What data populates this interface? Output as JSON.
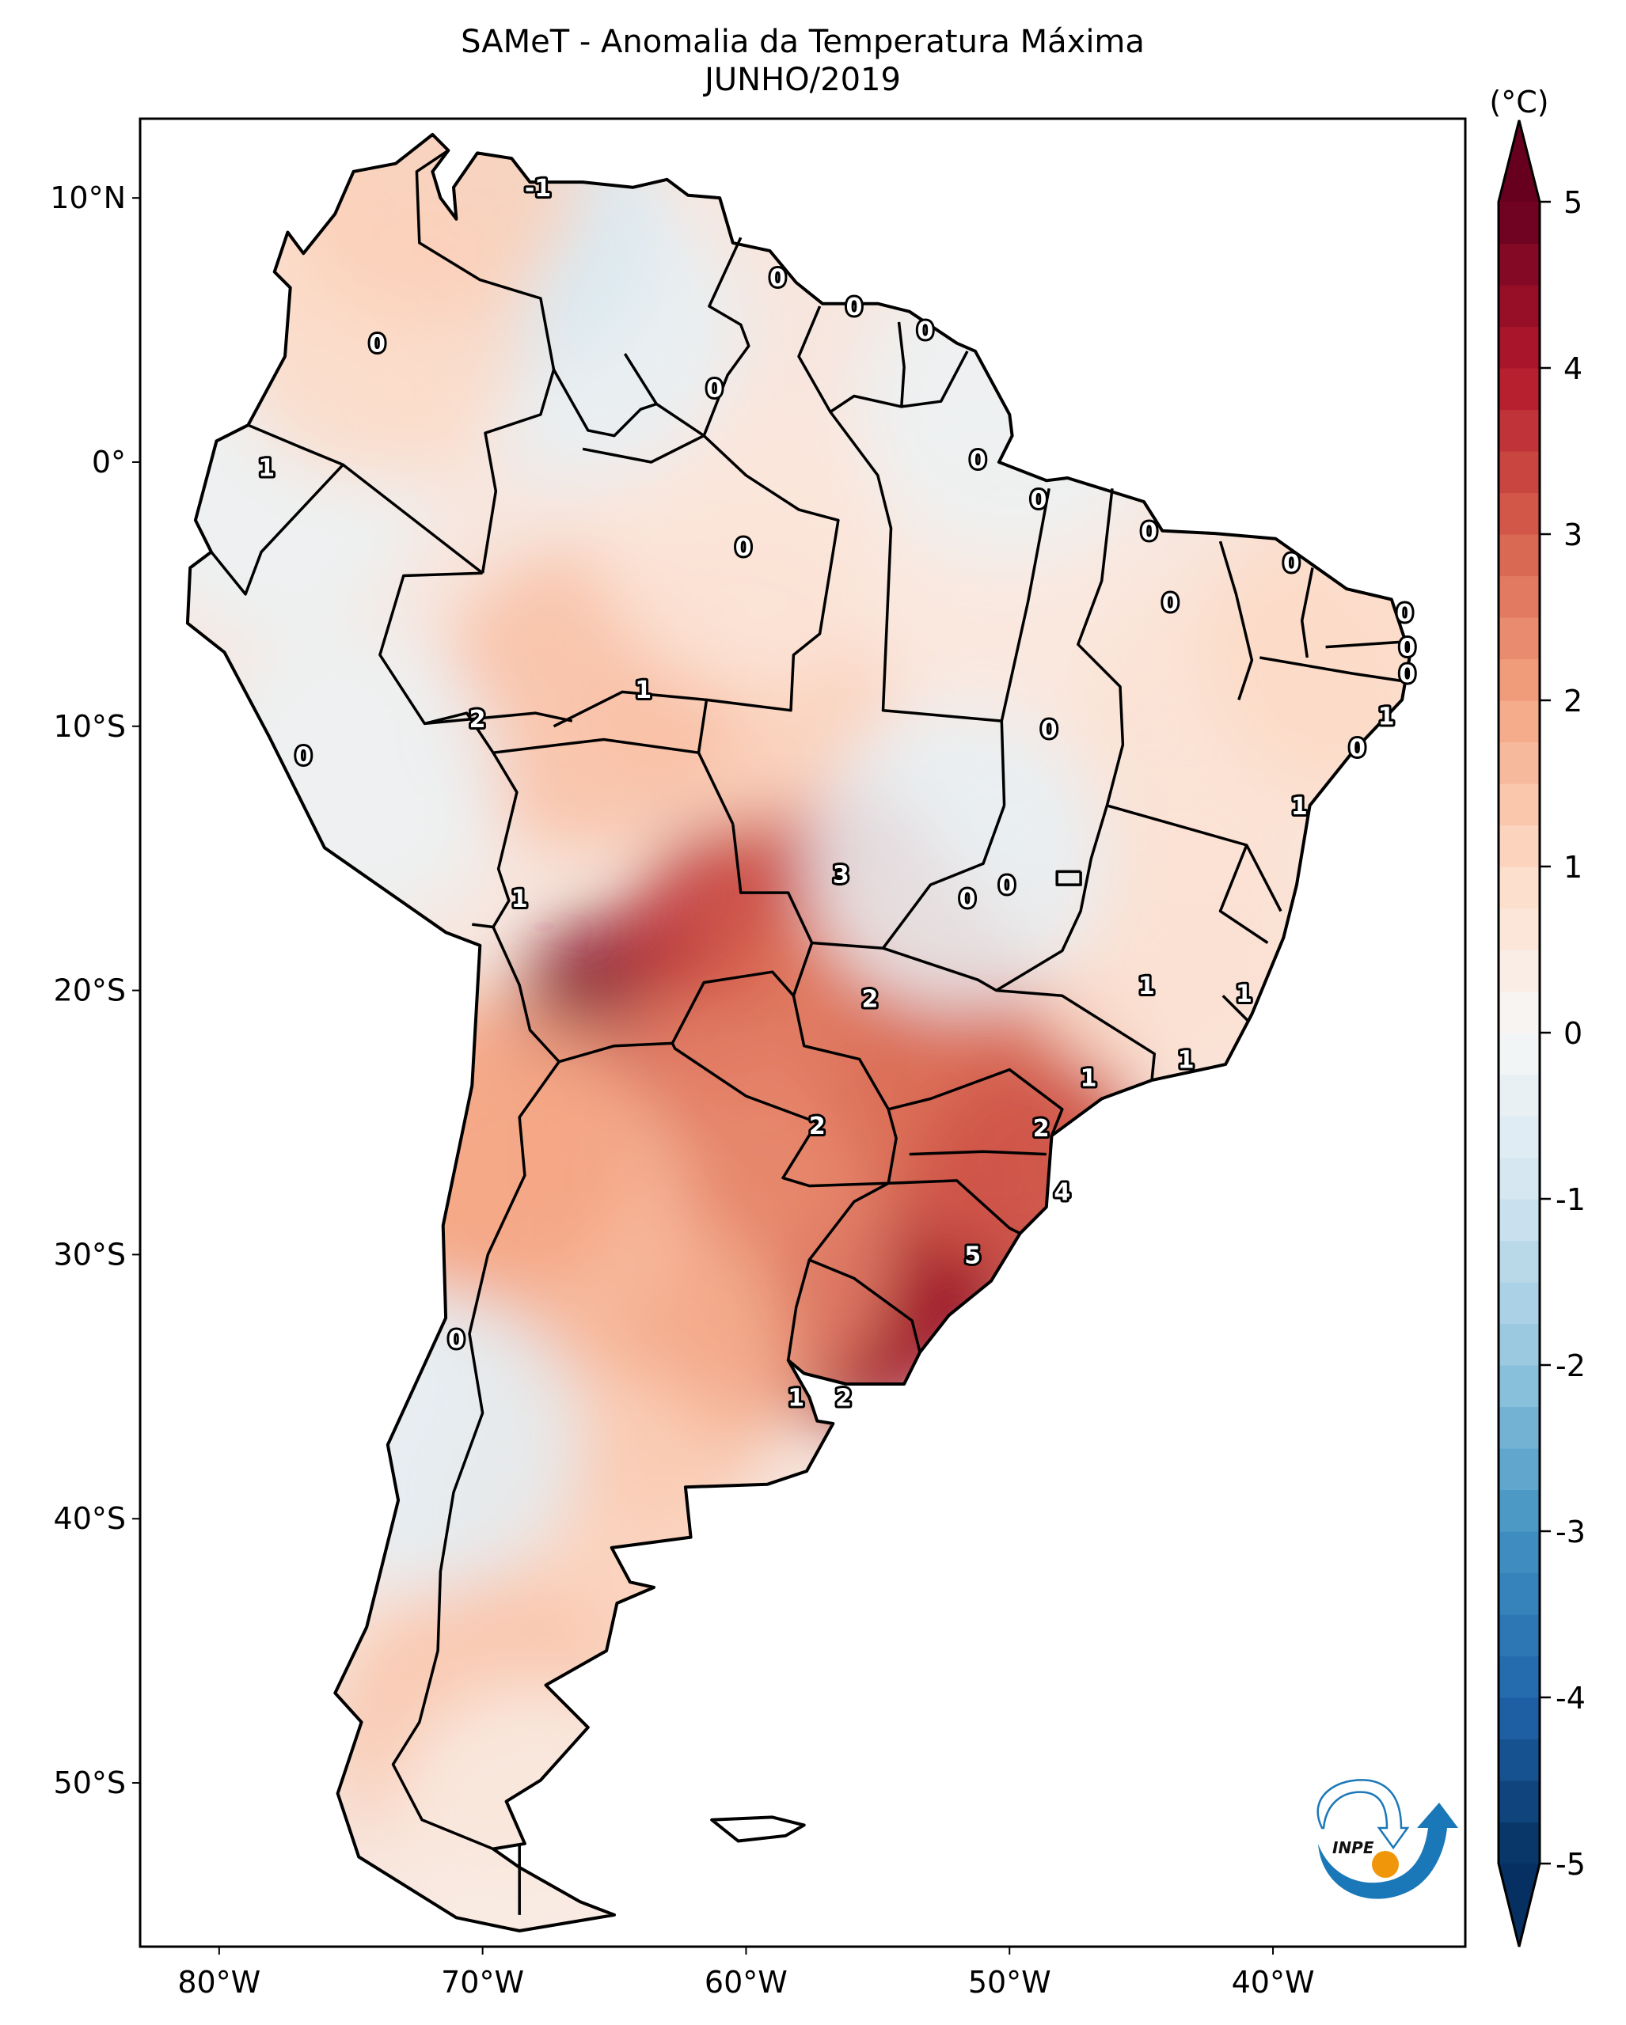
{
  "figure": {
    "title_line1": "SAMeT - Anomalia da Temperatura Máxima",
    "title_line2": "JUNHO/2019",
    "colorbar_unit": "(°C)",
    "logo_text": "INPE"
  },
  "colors": {
    "logo_blue": "#1a78b8",
    "logo_orange": "#f0960a",
    "border": "#000000"
  },
  "chart_data": {
    "type": "heatmap",
    "title": "SAMeT - Anomalia da Temperatura Máxima — JUNHO/2019",
    "xlabel": "",
    "ylabel": "",
    "colorbar_label": "(°C)",
    "colormap": "RdBu_r",
    "clim": [
      -5,
      5
    ],
    "extend": "both",
    "colorbar_ticks": [
      5,
      4,
      3,
      2,
      1,
      0,
      -1,
      -2,
      -3,
      -4,
      -5
    ],
    "colorbar_tick_labels": [
      "5",
      "4",
      "3",
      "2",
      "1",
      "0",
      "-1",
      "-2",
      "-3",
      "-4",
      "-5"
    ],
    "lon_range": [
      -83,
      -32.7
    ],
    "lat_range": [
      -56.2,
      13
    ],
    "x_ticks": [
      -80,
      -70,
      -60,
      -50,
      -40
    ],
    "x_tick_labels": [
      "80°W",
      "70°W",
      "60°W",
      "50°W",
      "40°W"
    ],
    "y_ticks": [
      10,
      0,
      -10,
      -20,
      -30,
      -40,
      -50
    ],
    "y_tick_labels": [
      "10°N",
      "0°",
      "10°S",
      "20°S",
      "30°S",
      "40°S",
      "50°S"
    ],
    "anomaly_field_samples": [
      {
        "lon": -55,
        "lat": -30.5,
        "value": 4.8
      },
      {
        "lon": -53,
        "lat": -29.5,
        "value": 4.5
      },
      {
        "lon": -56,
        "lat": -32,
        "value": 4.2
      },
      {
        "lon": -64.5,
        "lat": -21.5,
        "value": 4.6
      },
      {
        "lon": -60,
        "lat": -18,
        "value": 3.6
      },
      {
        "lon": -57,
        "lat": -16.5,
        "value": 3.2
      },
      {
        "lon": -58,
        "lat": -23,
        "value": 3.0
      },
      {
        "lon": -54,
        "lat": -21,
        "value": 2.6
      },
      {
        "lon": -51,
        "lat": -24,
        "value": 2.8
      },
      {
        "lon": -49,
        "lat": -27,
        "value": 3.2
      },
      {
        "lon": -62,
        "lat": -26,
        "value": 2.5
      },
      {
        "lon": -60,
        "lat": -30,
        "value": 2.4
      },
      {
        "lon": -64,
        "lat": -34,
        "value": 1.8
      },
      {
        "lon": -68,
        "lat": -28,
        "value": 1.6
      },
      {
        "lon": -70,
        "lat": -26,
        "value": 2.0
      },
      {
        "lon": -66,
        "lat": -40,
        "value": 1.2
      },
      {
        "lon": -70,
        "lat": -48,
        "value": 1.4
      },
      {
        "lon": -68,
        "lat": -52,
        "value": 0.4
      },
      {
        "lon": -60,
        "lat": -8,
        "value": 1.2
      },
      {
        "lon": -66,
        "lat": -9,
        "value": 1.5
      },
      {
        "lon": -60,
        "lat": -3,
        "value": 0.6
      },
      {
        "lon": -50,
        "lat": -5,
        "value": 0.5
      },
      {
        "lon": -44,
        "lat": -18,
        "value": 0.8
      },
      {
        "lon": -42,
        "lat": -10,
        "value": 0.7
      },
      {
        "lon": -37,
        "lat": -7,
        "value": 1.0
      },
      {
        "lon": -52,
        "lat": -15,
        "value": -0.4
      },
      {
        "lon": -50,
        "lat": 2,
        "value": -0.3
      },
      {
        "lon": -66,
        "lat": 5,
        "value": -0.4
      },
      {
        "lon": -69,
        "lat": 9,
        "value": -0.8
      },
      {
        "lon": -78,
        "lat": -1,
        "value": -0.3
      },
      {
        "lon": -75,
        "lat": -12,
        "value": -0.3
      },
      {
        "lon": -72,
        "lat": -37,
        "value": -0.5
      },
      {
        "lon": -74,
        "lat": 5,
        "value": 1.0
      },
      {
        "lon": -72,
        "lat": 11,
        "value": 1.2
      }
    ],
    "contour_labels": [
      {
        "lon": -67.9,
        "lat": 10.4,
        "text": "-1"
      },
      {
        "lon": -74.0,
        "lat": 4.5,
        "text": "0"
      },
      {
        "lon": -61.2,
        "lat": 2.8,
        "text": "0"
      },
      {
        "lon": -58.8,
        "lat": 7.0,
        "text": "0"
      },
      {
        "lon": -55.9,
        "lat": 5.9,
        "text": "0"
      },
      {
        "lon": -53.2,
        "lat": 5.0,
        "text": "0"
      },
      {
        "lon": -51.2,
        "lat": 0.1,
        "text": "0"
      },
      {
        "lon": -48.9,
        "lat": -1.4,
        "text": "0"
      },
      {
        "lon": -44.7,
        "lat": -2.6,
        "text": "0"
      },
      {
        "lon": -39.3,
        "lat": -3.8,
        "text": "0"
      },
      {
        "lon": -43.9,
        "lat": -5.3,
        "text": "0"
      },
      {
        "lon": -35.0,
        "lat": -5.7,
        "text": "0"
      },
      {
        "lon": -34.9,
        "lat": -7.0,
        "text": "0"
      },
      {
        "lon": -34.9,
        "lat": -8.0,
        "text": "0"
      },
      {
        "lon": -35.7,
        "lat": -9.6,
        "text": "1"
      },
      {
        "lon": -36.8,
        "lat": -10.8,
        "text": "0"
      },
      {
        "lon": -39.0,
        "lat": -13.0,
        "text": "1"
      },
      {
        "lon": -60.1,
        "lat": -3.2,
        "text": "0"
      },
      {
        "lon": -78.2,
        "lat": -0.2,
        "text": "1"
      },
      {
        "lon": -76.8,
        "lat": -11.1,
        "text": "0"
      },
      {
        "lon": -70.2,
        "lat": -9.7,
        "text": "2"
      },
      {
        "lon": -63.9,
        "lat": -8.6,
        "text": "1"
      },
      {
        "lon": -48.5,
        "lat": -10.1,
        "text": "0"
      },
      {
        "lon": -56.4,
        "lat": -15.6,
        "text": "3"
      },
      {
        "lon": -50.1,
        "lat": -16.0,
        "text": "0"
      },
      {
        "lon": -51.6,
        "lat": -16.5,
        "text": "0"
      },
      {
        "lon": -68.6,
        "lat": -16.5,
        "text": "1"
      },
      {
        "lon": -55.3,
        "lat": -20.3,
        "text": "2"
      },
      {
        "lon": -44.8,
        "lat": -19.8,
        "text": "1"
      },
      {
        "lon": -41.1,
        "lat": -20.1,
        "text": "1"
      },
      {
        "lon": -47.0,
        "lat": -23.3,
        "text": "1"
      },
      {
        "lon": -43.3,
        "lat": -22.6,
        "text": "1"
      },
      {
        "lon": -57.3,
        "lat": -25.1,
        "text": "2"
      },
      {
        "lon": -48.8,
        "lat": -25.2,
        "text": "2"
      },
      {
        "lon": -48.0,
        "lat": -27.6,
        "text": "4"
      },
      {
        "lon": -51.4,
        "lat": -30.0,
        "text": "5"
      },
      {
        "lon": -71.0,
        "lat": -33.2,
        "text": "0"
      },
      {
        "lon": -58.1,
        "lat": -35.4,
        "text": "1"
      },
      {
        "lon": -56.3,
        "lat": -35.4,
        "text": "2"
      }
    ]
  }
}
